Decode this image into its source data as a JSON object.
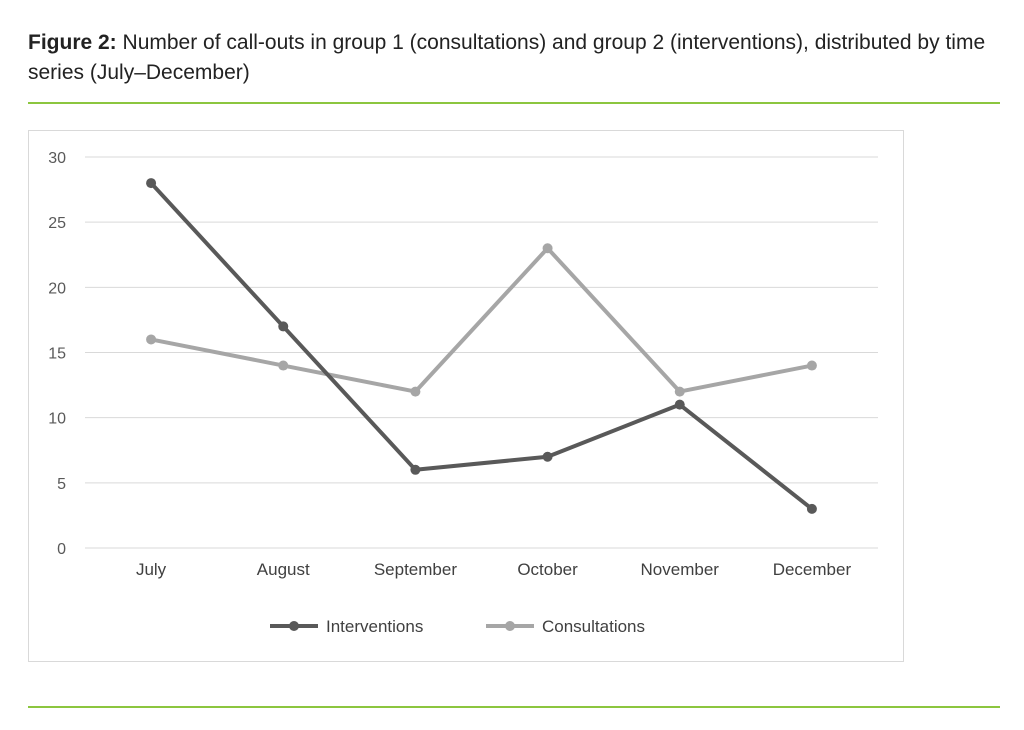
{
  "caption": {
    "label": "Figure 2:",
    "text": " Number of call-outs in group 1 (consultations) and group 2 (interventions), distributed by time series (July–December)"
  },
  "colors": {
    "rule": "#8cc63f",
    "interventions": "#595959",
    "consultations": "#a6a6a6",
    "grid": "#d9d9d9"
  },
  "chart_data": {
    "type": "line",
    "categories": [
      "July",
      "August",
      "September",
      "October",
      "November",
      "December"
    ],
    "series": [
      {
        "name": "Interventions",
        "values": [
          28,
          17,
          6,
          7,
          11,
          3
        ],
        "color": "#595959"
      },
      {
        "name": "Consultations",
        "values": [
          16,
          14,
          12,
          23,
          12,
          14
        ],
        "color": "#a6a6a6"
      }
    ],
    "ylim": [
      0,
      30
    ],
    "yticks": [
      "0",
      "5",
      "10",
      "15",
      "20",
      "25",
      "30"
    ],
    "grid": true,
    "legend": "bottom",
    "title": "",
    "xlabel": "",
    "ylabel": ""
  }
}
